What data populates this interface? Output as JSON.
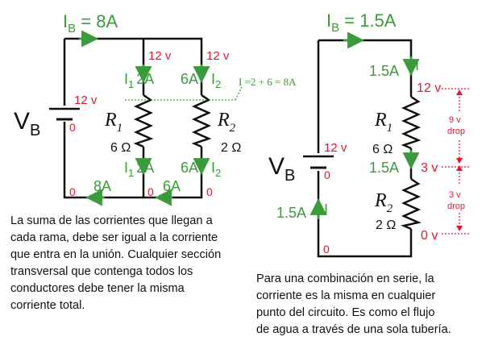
{
  "parallel": {
    "total_current_sym": "I",
    "total_current_sub": "B",
    "total_current_val": " = 8A",
    "source_sym": "V",
    "source_sub": "B",
    "source_top_voltage": "12 v",
    "source_bottom_voltage": "0",
    "node_voltage_1": "12 v",
    "node_voltage_2": "12 v",
    "branch1_current_sym": "I",
    "branch1_current_sub": "1",
    "branch1_current_val": "2A",
    "branch2_current_sym": "I",
    "branch2_current_sub": "2",
    "branch2_current_val": "6A",
    "branch1_bottom_sym": "I",
    "branch1_bottom_sub": "1",
    "branch1_bottom_val": "2A",
    "branch2_bottom_sym": "I",
    "branch2_bottom_sub": "2",
    "branch2_bottom_val": "6A",
    "sum_annotation": "I =2 + 6 = 8A",
    "r1_sym": "R",
    "r1_sub": "1",
    "r1_value": "6 Ω",
    "r2_sym": "R",
    "r2_sub": "2",
    "r2_value": "2 Ω",
    "bottom_current_1": "8A",
    "bottom_current_2": "6A",
    "bottom_voltage_left": "0",
    "bottom_voltage_mid": "0",
    "bottom_voltage_right": "0",
    "description": [
      "La suma de las corrientes que llegan a",
      "cada rama, debe ser igual a la corriente",
      "que entra en la unión.  Cualquier sección",
      "transversal que contenga todos los",
      "conductores debe tener la misma",
      "corriente total."
    ]
  },
  "series": {
    "total_current_sym": "I",
    "total_current_sub": "B",
    "total_current_val": " = 1.5A",
    "source_sym": "V",
    "source_sub": "B",
    "source_top_voltage": "12 v",
    "source_bottom_voltage": "0",
    "top_current_val": "1.5A",
    "top_current_sym": "I",
    "left_current_val": "1.5A",
    "left_current_sym": "I",
    "mid_current_val": "1.5A",
    "r1_sym": "R",
    "r1_sub": "1",
    "r1_value": "6 Ω",
    "r2_sym": "R",
    "r2_sub": "2",
    "r2_value": "2 Ω",
    "node_voltage_top": "12 v",
    "node_voltage_mid": "3 v",
    "node_voltage_bottom": "0 v",
    "drop1_value": "9 v",
    "drop1_label": "drop",
    "drop2_value": "3 v",
    "drop2_label": "drop",
    "bottom_voltage": "0",
    "description": [
      "Para una combinación en serie, la",
      "corriente es la misma en cualquier",
      "punto del circuito.  Es como el flujo",
      "de agua a través de una sola tubería."
    ]
  },
  "colors": {
    "current": "#3b9a3b",
    "voltage": "#e8142a",
    "wire": "#111111"
  }
}
